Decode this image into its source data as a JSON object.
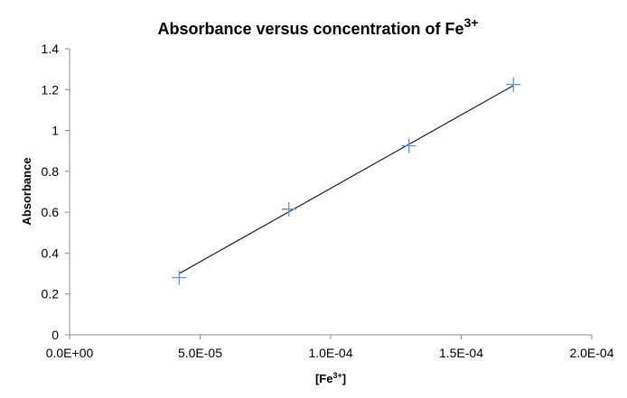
{
  "chart_data": {
    "type": "scatter",
    "title_main": "Absorbance versus concentration of Fe",
    "title_sup": "3+",
    "xlabel_main": "[Fe",
    "xlabel_sup": "3+",
    "xlabel_end": "]",
    "ylabel": "Absorbance",
    "xlim": [
      0,
      0.0002
    ],
    "ylim": [
      0,
      1.4
    ],
    "x_ticks": [
      0,
      5e-05,
      0.0001,
      0.00015,
      0.0002
    ],
    "x_tick_labels": [
      "0.0E+00",
      "5.0E-05",
      "1.0E-04",
      "1.5E-04",
      "2.0E-04"
    ],
    "y_ticks": [
      0,
      0.2,
      0.4,
      0.6,
      0.8,
      1,
      1.2,
      1.4
    ],
    "y_tick_labels": [
      "0",
      "0.2",
      "0.4",
      "0.6",
      "0.8",
      "1",
      "1.2",
      "1.4"
    ],
    "grid": false,
    "legend": "none",
    "marker": "plus",
    "marker_color": "#6f97c9",
    "trendline_color": "#222222",
    "series": [
      {
        "points": [
          {
            "x": 4.2e-05,
            "y": 0.28
          },
          {
            "x": 8.4e-05,
            "y": 0.615
          },
          {
            "x": 0.00013,
            "y": 0.925
          },
          {
            "x": 0.00017,
            "y": 1.225
          }
        ]
      }
    ],
    "trendline": {
      "type": "linear",
      "x_start": 4.2e-05,
      "y_start": 0.3,
      "x_end": 0.00017,
      "y_end": 1.22
    }
  }
}
